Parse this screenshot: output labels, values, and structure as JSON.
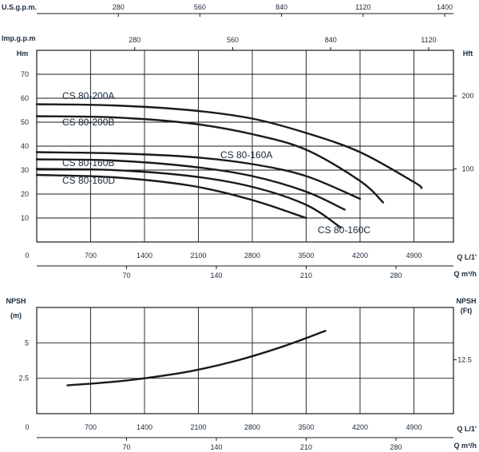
{
  "chart_data": [
    {
      "type": "line",
      "name_top_axes": {
        "usgpm_label": "U.S.g.p.m.",
        "usgpm_ticks": [
          "280",
          "560",
          "840",
          "1120",
          "1400"
        ],
        "usgpm_values": [
          280,
          560,
          840,
          1120,
          1400
        ],
        "impgpm_label": "Imp.g.p.m",
        "impgpm_ticks": [
          "280",
          "560",
          "840",
          "1120"
        ],
        "impgpm_values": [
          280,
          560,
          840,
          1120
        ]
      },
      "ylabel": "Hm",
      "ylabel_right": "Hft",
      "xlabel": "Q L/1'",
      "xlabel_secondary": "Q m³/h",
      "xlim": [
        0,
        5600
      ],
      "ylim": [
        0,
        80
      ],
      "yticks": [
        "10",
        "20",
        "30",
        "40",
        "50",
        "60",
        "70"
      ],
      "ytick_values": [
        10,
        20,
        30,
        40,
        50,
        60,
        70
      ],
      "yticks_right": [
        "100",
        "200"
      ],
      "ytick_right_values": [
        100,
        200
      ],
      "xticks": [
        "0",
        "700",
        "1400",
        "2100",
        "2800",
        "3500",
        "4200",
        "4900"
      ],
      "xtick_values": [
        0,
        700,
        1400,
        2100,
        2800,
        3500,
        4200,
        4900
      ],
      "xticks_secondary": [
        "70",
        "140",
        "210",
        "280"
      ],
      "xtick_secondary_values": [
        70,
        140,
        210,
        280
      ],
      "grid": true,
      "series": [
        {
          "name": "CS 80-200A",
          "x": [
            0,
            1000,
            2000,
            2800,
            3500,
            4200,
            4900,
            5000
          ],
          "y": [
            57.5,
            57,
            55,
            51.5,
            45.5,
            37.5,
            25,
            22.5
          ]
        },
        {
          "name": "CS 80-200B",
          "x": [
            0,
            1000,
            2000,
            2800,
            3500,
            4200,
            4500
          ],
          "y": [
            52.5,
            52,
            49.5,
            45,
            38.5,
            25.5,
            16.5
          ]
        },
        {
          "name": "CS 80-160A",
          "x": [
            0,
            1000,
            2000,
            2800,
            3500,
            4200
          ],
          "y": [
            37.5,
            37,
            35.5,
            32.5,
            27.5,
            18
          ]
        },
        {
          "name": "CS 80-160B",
          "x": [
            0,
            1000,
            2000,
            2800,
            3500,
            4000
          ],
          "y": [
            34.5,
            34,
            31.5,
            27.5,
            21,
            13.5
          ]
        },
        {
          "name": "CS 80-160C",
          "x": [
            0,
            1000,
            2000,
            2800,
            3500,
            3950
          ],
          "y": [
            30.5,
            30,
            27.5,
            23,
            15.5,
            6
          ]
        },
        {
          "name": "CS 80-160D",
          "x": [
            0,
            1000,
            2000,
            2800,
            3500
          ],
          "y": [
            28,
            27,
            23.5,
            17.5,
            10
          ]
        }
      ]
    },
    {
      "type": "line",
      "ylabel": "NPSH\n(m)",
      "ylabel_line1": "NPSH",
      "ylabel_line2": "(m)",
      "ylabel_right_line1": "NPSH",
      "ylabel_right_line2": "(Ft)",
      "xlabel": "Q L/1'",
      "xlabel_secondary": "Q m³/h",
      "xlim": [
        0,
        5600
      ],
      "ylim": [
        0,
        7.5
      ],
      "yticks": [
        "2.5",
        "5"
      ],
      "ytick_values": [
        2.5,
        5
      ],
      "yticks_right": [
        "12.5"
      ],
      "ytick_right_values": [
        12.5
      ],
      "xticks": [
        "0",
        "700",
        "1400",
        "2100",
        "2800",
        "3500",
        "4200",
        "4900"
      ],
      "xtick_values": [
        0,
        700,
        1400,
        2100,
        2800,
        3500,
        4200,
        4900
      ],
      "xticks_secondary": [
        "70",
        "140",
        "210",
        "280"
      ],
      "xtick_secondary_values": [
        70,
        140,
        210,
        280
      ],
      "grid": true,
      "series": [
        {
          "name": "",
          "x": [
            400,
            1000,
            1400,
            2000,
            2600,
            3200,
            3750
          ],
          "y": [
            2.0,
            2.25,
            2.5,
            3.0,
            3.75,
            4.75,
            5.85
          ]
        }
      ]
    }
  ]
}
